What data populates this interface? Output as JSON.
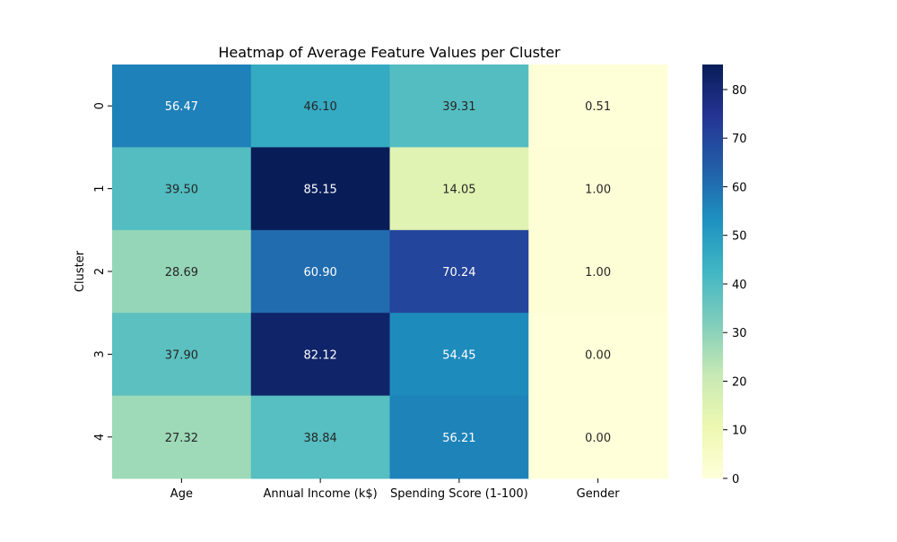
{
  "chart_data": {
    "type": "heatmap",
    "title": "Heatmap of Average Feature Values per Cluster",
    "xlabel": "",
    "ylabel": "Cluster",
    "rows": [
      "0",
      "1",
      "2",
      "3",
      "4"
    ],
    "columns": [
      "Age",
      "Annual Income (k$)",
      "Spending Score (1-100)",
      "Gender"
    ],
    "values": [
      [
        56.47,
        46.1,
        39.31,
        0.51
      ],
      [
        39.5,
        85.15,
        14.05,
        1.0
      ],
      [
        28.69,
        60.9,
        70.24,
        1.0
      ],
      [
        37.9,
        82.12,
        54.45,
        0.0
      ],
      [
        27.32,
        38.84,
        56.21,
        0.0
      ]
    ],
    "value_format": "0.00",
    "colormap": "YlGnBu",
    "colorbar": {
      "vmin": 0,
      "vmax": 85.15,
      "ticks": [
        0,
        10,
        20,
        30,
        40,
        50,
        60,
        70,
        80
      ]
    },
    "legend_placement": "right",
    "grid": false
  },
  "colors": {
    "ylgnbu_stops": [
      "#ffffd9",
      "#edf8b1",
      "#c7e9b4",
      "#7fcdbb",
      "#41b6c4",
      "#1d91c0",
      "#225ea8",
      "#253494",
      "#081d58"
    ],
    "text_dark": "#262626",
    "text_light": "#ffffff"
  }
}
